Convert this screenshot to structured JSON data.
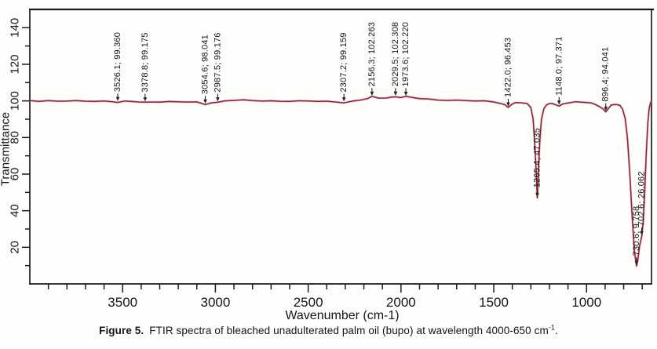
{
  "figure": {
    "caption_label": "Figure 5.",
    "caption_body": "FTIR spectra of bleached unadulterated palm oil (bupo) at wavelength 4000-650 cm",
    "caption_superscript": "-1",
    "caption_tail": "."
  },
  "chart_data": {
    "type": "line",
    "title": "",
    "xlabel": "Wavenumber (cm-1)",
    "ylabel": "Transmittance",
    "xlim": [
      4000,
      650
    ],
    "ylim": [
      0,
      150
    ],
    "x_major_ticks": [
      3500,
      3000,
      2500,
      2000,
      1500,
      1000
    ],
    "x_minor_step": 100,
    "y_major_ticks": [
      20,
      40,
      60,
      80,
      100,
      120,
      140
    ],
    "y_minor_step": 10,
    "grid": false,
    "legend": null,
    "line_color": "#8e2336",
    "line_halo_color": "#d897a4",
    "axis_color": "#1c1c1c",
    "text_color": "#161616",
    "peak_annotations": [
      {
        "wavenumber": 3526.1,
        "transmittance": 99.36,
        "label": "3526.1; 99.360"
      },
      {
        "wavenumber": 3378.8,
        "transmittance": 99.175,
        "label": "3378.8; 99.175"
      },
      {
        "wavenumber": 3054.6,
        "transmittance": 98.041,
        "label": "3054.6; 98.041"
      },
      {
        "wavenumber": 2987.5,
        "transmittance": 99.176,
        "label": "2987.5; 99.176"
      },
      {
        "wavenumber": 2307.2,
        "transmittance": 99.159,
        "label": "2307.2; 99.159"
      },
      {
        "wavenumber": 2156.3,
        "transmittance": 102.263,
        "label": "2156.3; 102.263"
      },
      {
        "wavenumber": 2029.5,
        "transmittance": 102.308,
        "label": "2029.5; 102.308"
      },
      {
        "wavenumber": 1973.6,
        "transmittance": 102.22,
        "label": "1973.6; 102.220"
      },
      {
        "wavenumber": 1422.0,
        "transmittance": 96.453,
        "label": "1422.0; 96.453"
      },
      {
        "wavenumber": 1265.4,
        "transmittance": 47.035,
        "label": "1265.4; 47.035"
      },
      {
        "wavenumber": 1148.0,
        "transmittance": 97.371,
        "label": "1148.0; 97.371"
      },
      {
        "wavenumber": 896.4,
        "transmittance": 94.041,
        "label": "896.4; 94.041"
      },
      {
        "wavenumber": 730.6,
        "transmittance": 9.758,
        "label": "730.6; 9.758"
      },
      {
        "wavenumber": 702.6,
        "transmittance": 26.062,
        "label": "702.6; 26.062"
      }
    ],
    "series": [
      {
        "name": "bupo spectrum",
        "points": [
          [
            4000,
            100.2
          ],
          [
            3950,
            100.0
          ],
          [
            3900,
            100.1
          ],
          [
            3850,
            99.9
          ],
          [
            3800,
            100.0
          ],
          [
            3750,
            99.9
          ],
          [
            3700,
            99.8
          ],
          [
            3650,
            99.9
          ],
          [
            3600,
            99.9
          ],
          [
            3560,
            99.7
          ],
          [
            3526.1,
            99.36
          ],
          [
            3490,
            99.7
          ],
          [
            3450,
            99.6
          ],
          [
            3410,
            99.45
          ],
          [
            3378.8,
            99.175
          ],
          [
            3340,
            99.5
          ],
          [
            3300,
            99.6
          ],
          [
            3250,
            99.55
          ],
          [
            3200,
            99.5
          ],
          [
            3150,
            99.45
          ],
          [
            3100,
            99.2
          ],
          [
            3054.6,
            98.041
          ],
          [
            3020,
            99.2
          ],
          [
            2987.5,
            99.176
          ],
          [
            2950,
            100.1
          ],
          [
            2900,
            100.4
          ],
          [
            2850,
            100.3
          ],
          [
            2800,
            100.1
          ],
          [
            2750,
            100.05
          ],
          [
            2700,
            100.0
          ],
          [
            2650,
            99.95
          ],
          [
            2600,
            99.9
          ],
          [
            2550,
            99.85
          ],
          [
            2500,
            99.9
          ],
          [
            2450,
            99.8
          ],
          [
            2400,
            99.7
          ],
          [
            2350,
            99.5
          ],
          [
            2307.2,
            99.159
          ],
          [
            2260,
            99.8
          ],
          [
            2220,
            100.4
          ],
          [
            2180,
            101.3
          ],
          [
            2156.3,
            102.263
          ],
          [
            2120,
            101.6
          ],
          [
            2080,
            101.8
          ],
          [
            2050,
            102.0
          ],
          [
            2029.5,
            102.308
          ],
          [
            2000,
            101.9
          ],
          [
            1973.6,
            102.22
          ],
          [
            1940,
            101.9
          ],
          [
            1900,
            101.4
          ],
          [
            1850,
            100.9
          ],
          [
            1800,
            100.6
          ],
          [
            1750,
            100.4
          ],
          [
            1700,
            100.2
          ],
          [
            1650,
            100.1
          ],
          [
            1600,
            100.0
          ],
          [
            1550,
            99.9
          ],
          [
            1500,
            99.6
          ],
          [
            1460,
            98.7
          ],
          [
            1440,
            97.8
          ],
          [
            1422,
            96.453
          ],
          [
            1405,
            98.0
          ],
          [
            1385,
            98.8
          ],
          [
            1360,
            99.1
          ],
          [
            1340,
            99.0
          ],
          [
            1320,
            98.5
          ],
          [
            1300,
            96.5
          ],
          [
            1288,
            90.0
          ],
          [
            1278,
            75.0
          ],
          [
            1270,
            58.0
          ],
          [
            1265.4,
            47.035
          ],
          [
            1260,
            60.0
          ],
          [
            1252,
            78.0
          ],
          [
            1243,
            90.0
          ],
          [
            1230,
            95.5
          ],
          [
            1215,
            97.8
          ],
          [
            1200,
            98.6
          ],
          [
            1185,
            98.4
          ],
          [
            1165,
            98.0
          ],
          [
            1148,
            97.371
          ],
          [
            1130,
            98.1
          ],
          [
            1110,
            98.7
          ],
          [
            1085,
            99.1
          ],
          [
            1060,
            99.3
          ],
          [
            1030,
            99.4
          ],
          [
            1000,
            99.3
          ],
          [
            975,
            98.8
          ],
          [
            950,
            98.0
          ],
          [
            925,
            96.6
          ],
          [
            910,
            95.2
          ],
          [
            896.4,
            94.041
          ],
          [
            882,
            96.0
          ],
          [
            868,
            97.6
          ],
          [
            852,
            98.2
          ],
          [
            836,
            98.1
          ],
          [
            820,
            97.3
          ],
          [
            806,
            95.5
          ],
          [
            792,
            90.5
          ],
          [
            780,
            80.0
          ],
          [
            768,
            62.0
          ],
          [
            755,
            38.0
          ],
          [
            742,
            18.0
          ],
          [
            730.6,
            9.758
          ],
          [
            723,
            13.5
          ],
          [
            714,
            21.0
          ],
          [
            702.6,
            26.062
          ],
          [
            695,
            34.0
          ],
          [
            687,
            50.0
          ],
          [
            678,
            72.0
          ],
          [
            670,
            88.0
          ],
          [
            662,
            96.0
          ],
          [
            655,
            99.0
          ],
          [
            650,
            100.3
          ]
        ]
      }
    ]
  }
}
